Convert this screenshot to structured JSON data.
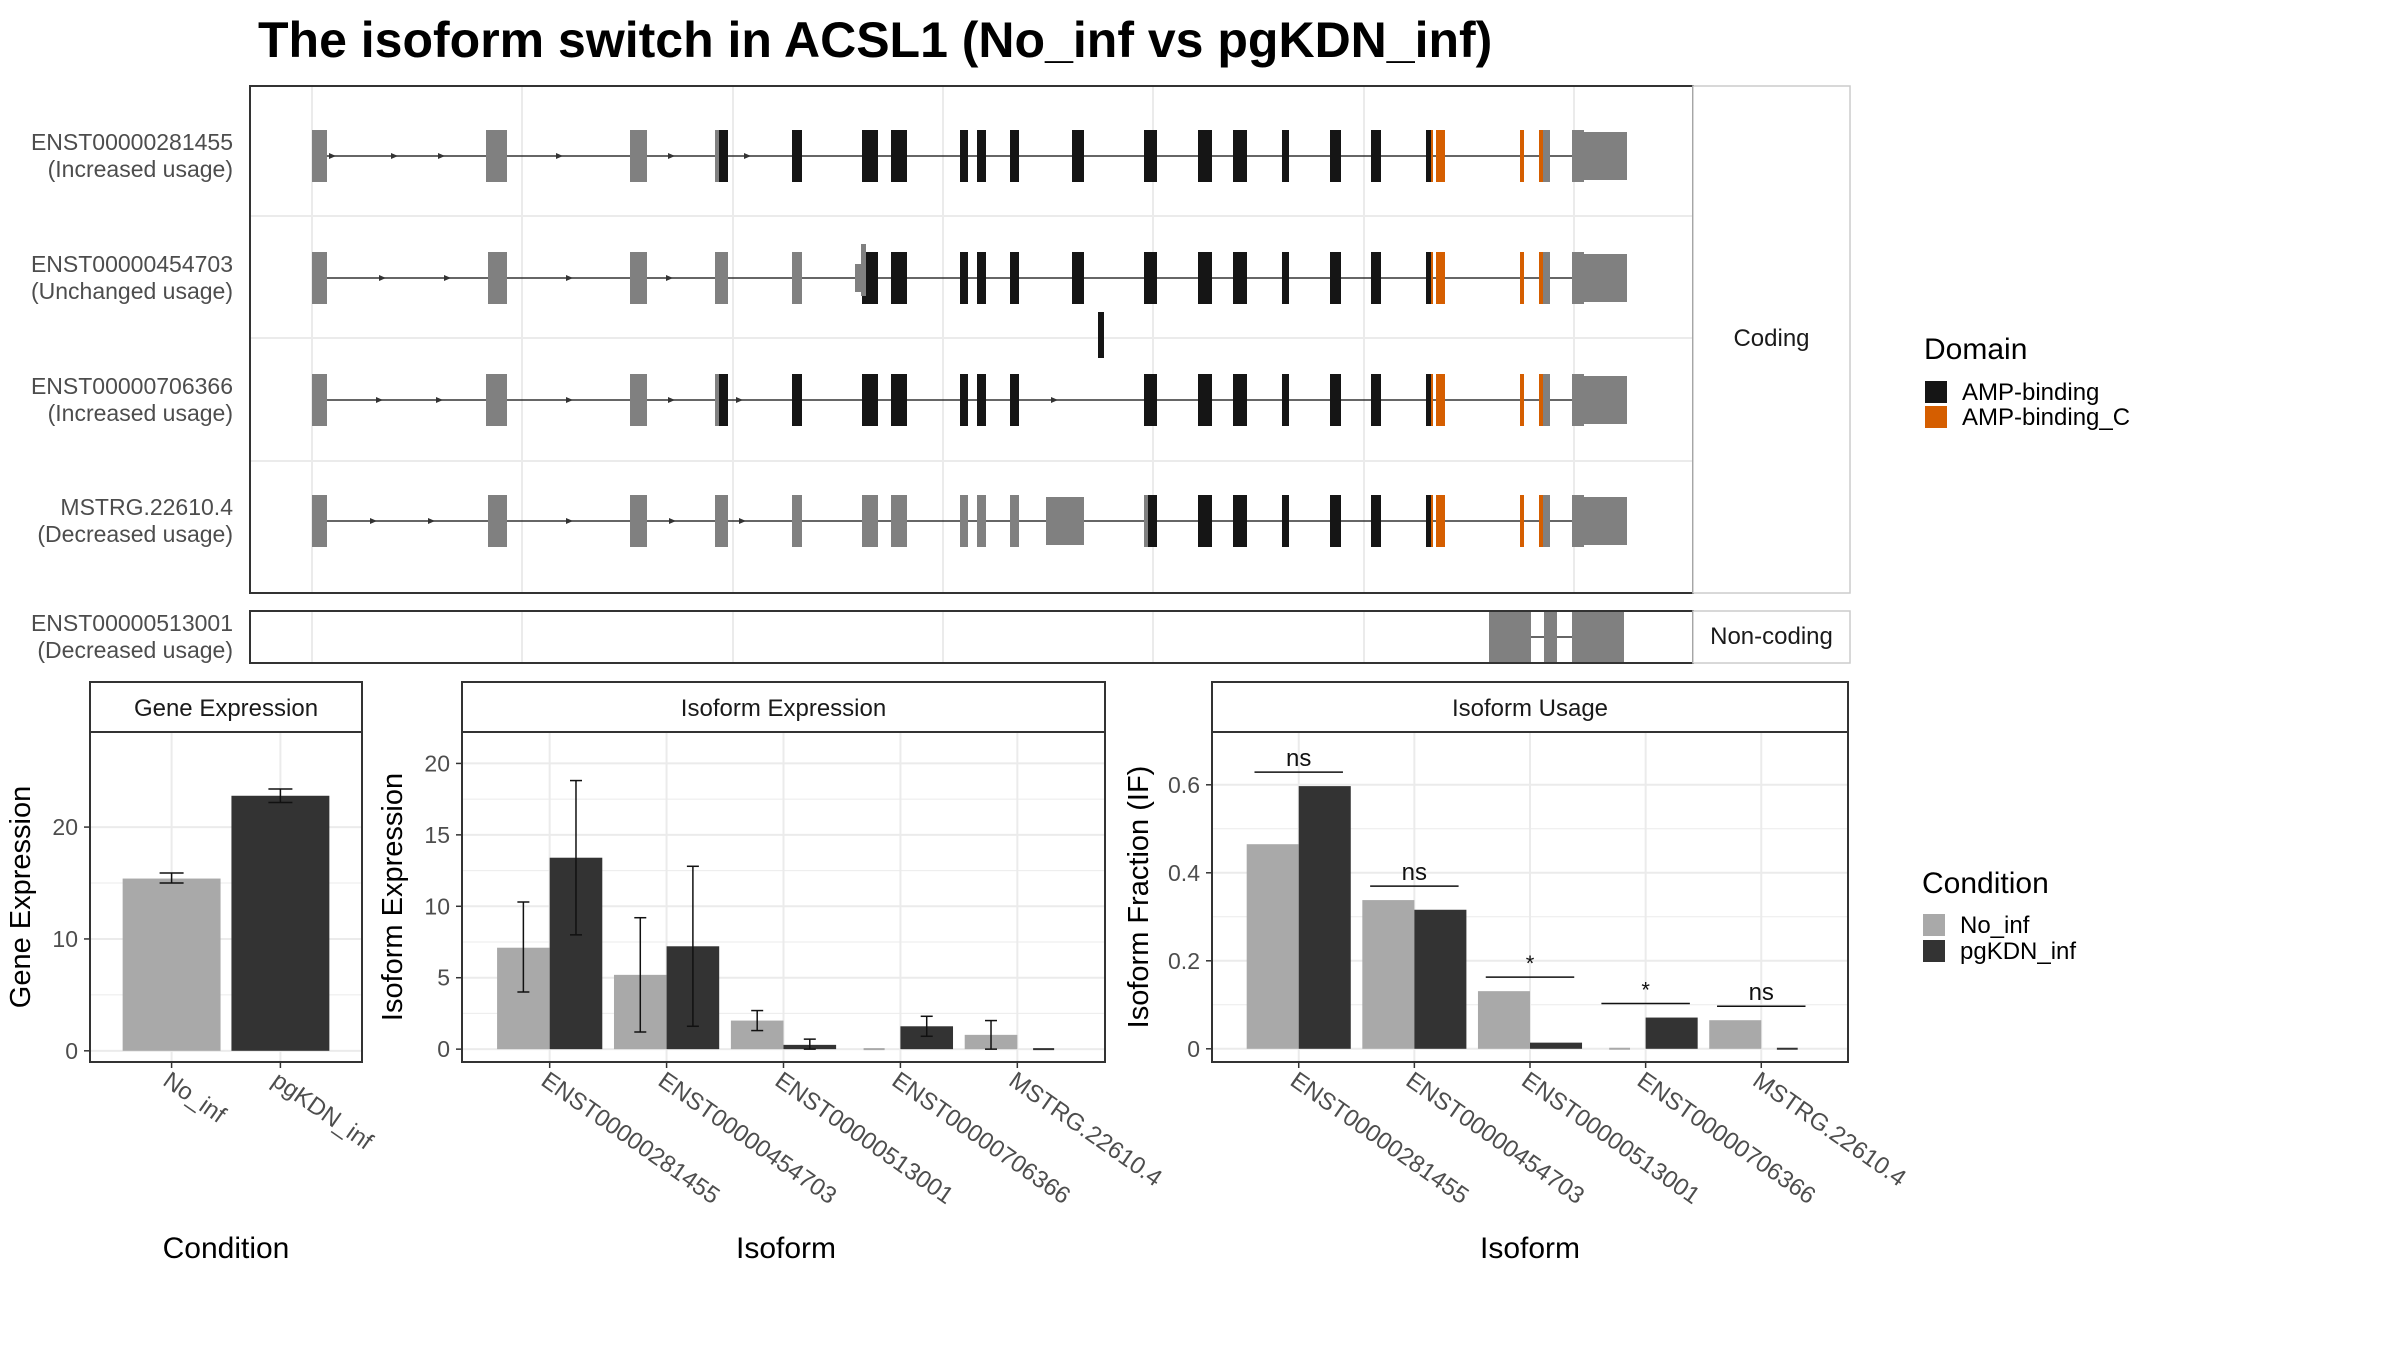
{
  "title": "The isoform switch in ACSL1 (No_inf vs pgKDN_inf)",
  "colors": {
    "amp_binding": "#151515",
    "amp_binding_c": "#D55E00",
    "exon_plain": "#808080",
    "no_inf": "#A9A9A9",
    "pgkdn_inf": "#333333",
    "panel_border": "#333333",
    "strip_fill": "#FFFFFF",
    "grid": "#EBEBEB"
  },
  "structure": {
    "coding_label": "Coding",
    "noncoding_label": "Non-coding",
    "transcripts": [
      {
        "id": "ENST00000281455",
        "usage": "(Increased usage)"
      },
      {
        "id": "ENST00000454703",
        "usage": "(Unchanged usage)"
      },
      {
        "id": "ENST00000706366",
        "usage": "(Increased usage)"
      },
      {
        "id": "MSTRG.22610.4",
        "usage": "(Decreased usage)"
      }
    ],
    "noncoding_transcripts": [
      {
        "id": "ENST00000513001",
        "usage": "(Decreased usage)"
      }
    ]
  },
  "legends": {
    "domain": {
      "title": "Domain",
      "items": [
        "AMP-binding",
        "AMP-binding_C"
      ]
    },
    "condition": {
      "title": "Condition",
      "items": [
        "No_inf",
        "pgKDN_inf"
      ]
    }
  },
  "chart_data": [
    {
      "type": "bar",
      "title": "Gene Expression",
      "xlabel": "Condition",
      "ylabel": "Gene Expression",
      "categories": [
        "No_inf",
        "pgKDN_inf"
      ],
      "values": [
        15.4,
        22.8
      ],
      "errors": [
        [
          15.0,
          15.9
        ],
        [
          22.2,
          23.4
        ]
      ],
      "ylim": [
        -1,
        28.5
      ],
      "yticks": [
        0,
        10,
        20
      ],
      "grid": true
    },
    {
      "type": "bar",
      "title": "Isoform Expression",
      "xlabel": "Isoform",
      "ylabel": "Isoform Expression",
      "categories": [
        "ENST00000281455",
        "ENST00000454703",
        "ENST00000513001",
        "ENST00000706366",
        "MSTRG.22610.4"
      ],
      "series": [
        {
          "name": "No_inf",
          "values": [
            7.1,
            5.2,
            2.0,
            0.0,
            1.0
          ],
          "errors": [
            [
              4.0,
              10.3
            ],
            [
              1.2,
              9.2
            ],
            [
              1.3,
              2.7
            ],
            [
              0.0,
              0.0
            ],
            [
              0.0,
              2.0
            ]
          ]
        },
        {
          "name": "pgKDN_inf",
          "values": [
            13.4,
            7.2,
            0.3,
            1.6,
            0.0
          ],
          "errors": [
            [
              8.0,
              18.8
            ],
            [
              1.6,
              12.8
            ],
            [
              0.0,
              0.7
            ],
            [
              0.9,
              2.3
            ],
            [
              0.0,
              0.0
            ]
          ]
        }
      ],
      "ylim": [
        -0.9,
        22.2
      ],
      "yticks": [
        0,
        5,
        10,
        15,
        20
      ],
      "grid": true
    },
    {
      "type": "bar",
      "title": "Isoform Usage",
      "xlabel": "Isoform",
      "ylabel": "Isoform Fraction (IF)",
      "categories": [
        "ENST00000281455",
        "ENST00000454703",
        "ENST00000513001",
        "ENST00000706366",
        "MSTRG.22610.4"
      ],
      "series": [
        {
          "name": "No_inf",
          "values": [
            0.465,
            0.338,
            0.131,
            0.0,
            0.065
          ]
        },
        {
          "name": "pgKDN_inf",
          "values": [
            0.597,
            0.316,
            0.014,
            0.071,
            0.0
          ]
        }
      ],
      "significance": [
        "ns",
        "ns",
        "*",
        "*",
        "ns"
      ],
      "ylim": [
        -0.03,
        0.72
      ],
      "yticks": [
        0.0,
        0.2,
        0.4,
        0.6
      ],
      "grid": true
    }
  ]
}
